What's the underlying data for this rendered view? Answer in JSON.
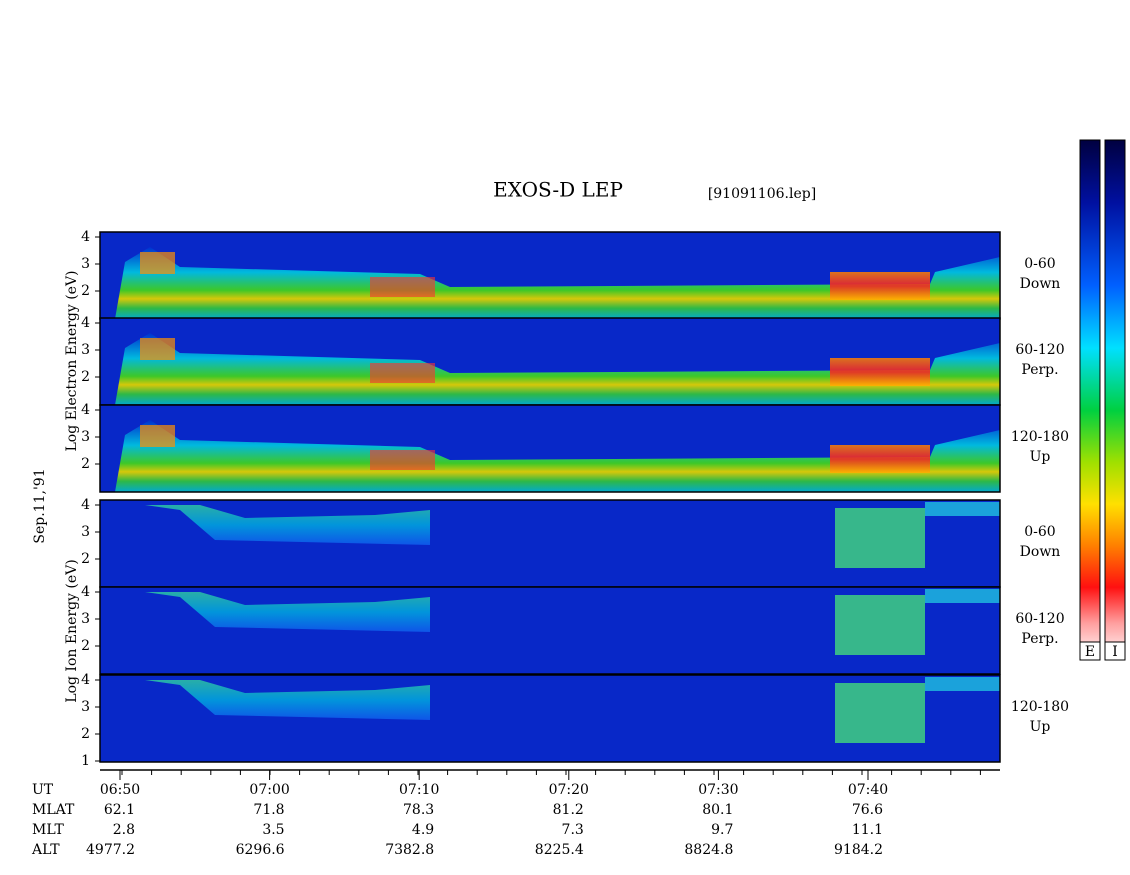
{
  "title": "EXOS-D LEP",
  "file": "[91091106.lep]",
  "date": "Sep.11,'91",
  "electron_axis_label": "Log Electron Energy (eV)",
  "ion_axis_label": "Log Ion Energy (eV)",
  "panels": [
    {
      "species": "electron",
      "angle": "0-60",
      "direction": "Down",
      "yticks": [
        "4",
        "3",
        "2"
      ]
    },
    {
      "species": "electron",
      "angle": "60-120",
      "direction": "Perp.",
      "yticks": [
        "4",
        "3",
        "2"
      ]
    },
    {
      "species": "electron",
      "angle": "120-180",
      "direction": "Up",
      "yticks": [
        "4",
        "3",
        "2"
      ]
    },
    {
      "species": "ion",
      "angle": "0-60",
      "direction": "Down",
      "yticks": [
        "4",
        "3",
        "2"
      ]
    },
    {
      "species": "ion",
      "angle": "60-120",
      "direction": "Perp.",
      "yticks": [
        "4",
        "3",
        "2"
      ]
    },
    {
      "species": "ion",
      "angle": "120-180",
      "direction": "Up",
      "yticks": [
        "4",
        "3",
        "2",
        "1"
      ]
    }
  ],
  "ephemeris": {
    "labels": [
      "UT",
      "MLAT",
      "MLT",
      "ALT"
    ],
    "columns": [
      [
        "06:50",
        "62.1",
        "2.8",
        "4977.2"
      ],
      [
        "07:00",
        "71.8",
        "3.5",
        "6296.6"
      ],
      [
        "07:10",
        "78.3",
        "4.9",
        "7382.8"
      ],
      [
        "07:20",
        "81.2",
        "7.3",
        "8225.4"
      ],
      [
        "07:30",
        "80.1",
        "9.7",
        "8824.8"
      ],
      [
        "07:40",
        "76.6",
        "11.1",
        "9184.2"
      ]
    ]
  },
  "colorbar_labels": [
    "E",
    "I"
  ]
}
